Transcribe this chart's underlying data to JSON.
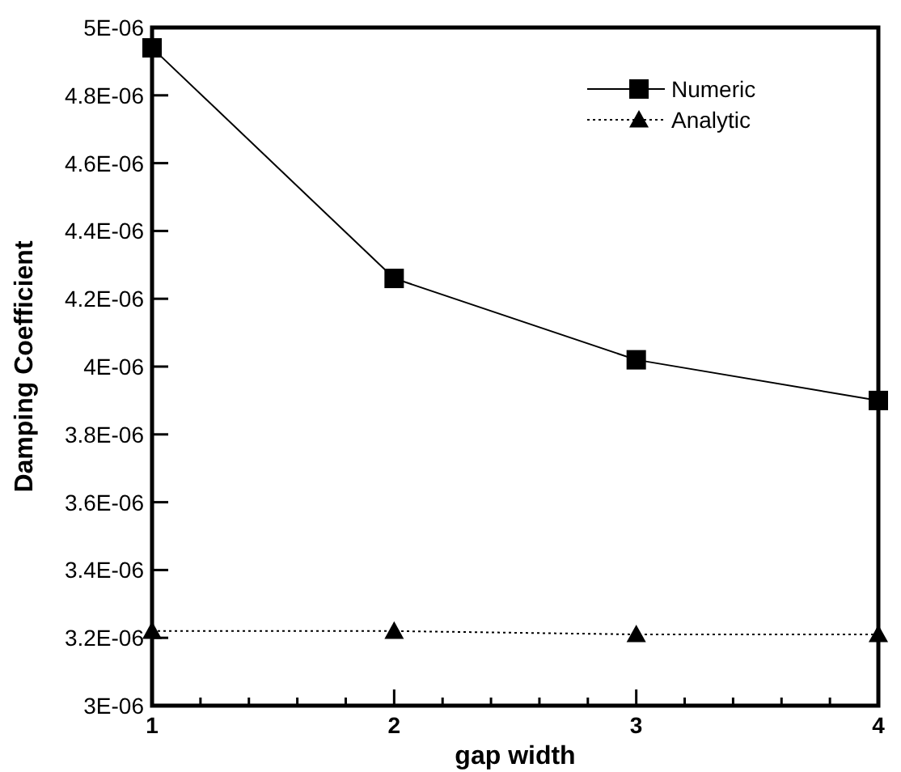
{
  "chart_data": {
    "type": "line",
    "xlabel": "gap width",
    "ylabel": "Damping Coefficient",
    "x": [
      1,
      2,
      3,
      4
    ],
    "series": [
      {
        "name": "Numeric",
        "color": "#000000",
        "values": [
          4.94e-06,
          4.26e-06,
          4.02e-06,
          3.9e-06
        ],
        "marker": "square",
        "line_style": "solid"
      },
      {
        "name": "Analytic",
        "color": "#000000",
        "values": [
          3.22e-06,
          3.22e-06,
          3.21e-06,
          3.21e-06
        ],
        "marker": "triangle",
        "line_style": "dotted"
      }
    ],
    "xlim": [
      1,
      4
    ],
    "ylim": [
      3e-06,
      5e-06
    ],
    "xticks": [
      1,
      {
        "value": 1.2,
        "label": null
      },
      {
        "value": 1.4,
        "label": null
      },
      {
        "value": 1.6,
        "label": null
      },
      {
        "value": 1.8,
        "label": null
      },
      2,
      {
        "value": 2.2,
        "label": null
      },
      {
        "value": 2.4,
        "label": null
      },
      {
        "value": 2.6,
        "label": null
      },
      {
        "value": 2.8,
        "label": null
      },
      3,
      {
        "value": 3.2,
        "label": null
      },
      {
        "value": 3.4,
        "label": null
      },
      {
        "value": 3.6,
        "label": null
      },
      {
        "value": 3.8,
        "label": null
      },
      4
    ],
    "yticks": [
      {
        "value": 3e-06,
        "label": "3E-06"
      },
      {
        "value": 3.2e-06,
        "label": "3.2E-06"
      },
      {
        "value": 3.4e-06,
        "label": "3.4E-06"
      },
      {
        "value": 3.6e-06,
        "label": "3.6E-06"
      },
      {
        "value": 3.8e-06,
        "label": "3.8E-06"
      },
      {
        "value": 4e-06,
        "label": "4E-06"
      },
      {
        "value": 4.2e-06,
        "label": "4.2E-06"
      },
      {
        "value": 4.4e-06,
        "label": "4.4E-06"
      },
      {
        "value": 4.6e-06,
        "label": "4.6E-06"
      },
      {
        "value": 4.8e-06,
        "label": "4.8E-06"
      },
      {
        "value": 5e-06,
        "label": "5E-06"
      }
    ],
    "grid": false,
    "legend": "top right"
  }
}
